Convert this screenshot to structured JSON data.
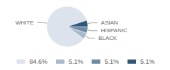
{
  "chart_data": {
    "type": "pie",
    "categories": [
      "WHITE",
      "BLACK",
      "HISPANIC",
      "ASIAN"
    ],
    "values": [
      84.6,
      5.1,
      5.1,
      5.1
    ],
    "value_labels": [
      "84.6%",
      "5.1%",
      "5.1%",
      "5.1%"
    ],
    "colors": [
      "#dde3ec",
      "#a8bacb",
      "#6d8ba7",
      "#2f5778"
    ],
    "legend": "bottom"
  }
}
